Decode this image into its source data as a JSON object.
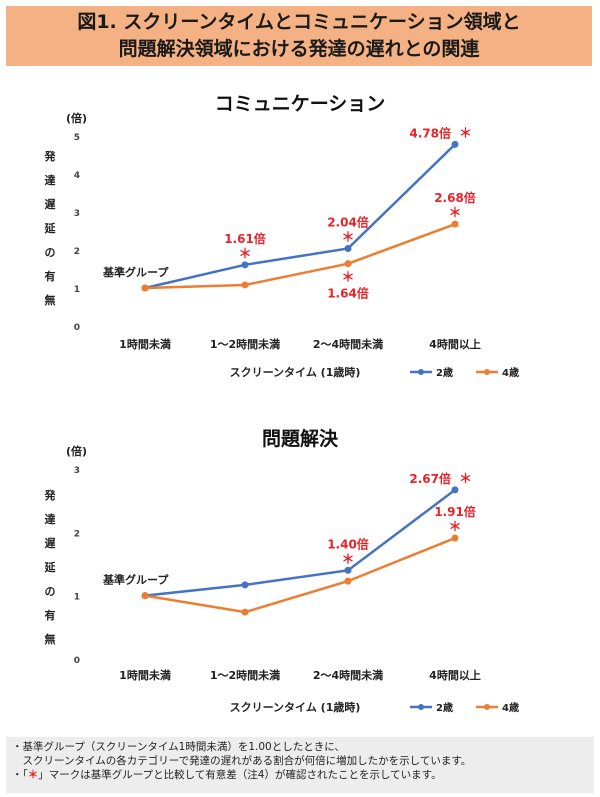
{
  "header": {
    "title_line1": "図1. スクリーンタイムとコミュニケーション領域と",
    "title_line2": "問題解決領域における発達の遅れとの関連"
  },
  "colors": {
    "series_2yo": "#4472C4",
    "series_4yo": "#ED7D31",
    "annotation": "#E8232A",
    "banner": "#F4B183"
  },
  "chart_data": [
    {
      "type": "line",
      "title": "コミュニケーション",
      "ylabel": "発達遅延の有無",
      "yunit": "(倍)",
      "xlabel": "スクリーンタイム (1歳時)",
      "categories": [
        "1時間未満",
        "1～2時間未満",
        "2～4時間未満",
        "4時間以上"
      ],
      "ylim": [
        0,
        5
      ],
      "yticks": [
        "0",
        "1",
        "2",
        "3",
        "4",
        "5"
      ],
      "grid": false,
      "legend": "bottom-right",
      "baseline_label": "基準グループ",
      "series": [
        {
          "name": "2歳",
          "values": [
            1.0,
            1.61,
            2.04,
            4.78
          ]
        },
        {
          "name": "4歳",
          "values": [
            1.0,
            1.08,
            1.64,
            2.68
          ]
        }
      ],
      "annotations": [
        {
          "series": 0,
          "index": 1,
          "label": "1.61倍",
          "star": "＊",
          "place": "above"
        },
        {
          "series": 0,
          "index": 2,
          "label": "2.04倍",
          "star": "＊",
          "place": "above"
        },
        {
          "series": 0,
          "index": 3,
          "label": "4.78倍",
          "star": "＊",
          "place": "left"
        },
        {
          "series": 1,
          "index": 2,
          "label": "1.64倍",
          "star": "＊",
          "place": "below"
        },
        {
          "series": 1,
          "index": 3,
          "label": "2.68倍",
          "star": "＊",
          "place": "above"
        }
      ]
    },
    {
      "type": "line",
      "title": "問題解決",
      "ylabel": "発達遅延の有無",
      "yunit": "(倍)",
      "xlabel": "スクリーンタイム (1歳時)",
      "categories": [
        "1時間未満",
        "1～2時間未満",
        "2～4時間未満",
        "4時間以上"
      ],
      "ylim": [
        0,
        3
      ],
      "yticks": [
        "0",
        "1",
        "2",
        "3"
      ],
      "grid": false,
      "legend": "bottom-right",
      "baseline_label": "基準グループ",
      "series": [
        {
          "name": "2歳",
          "values": [
            1.0,
            1.17,
            1.4,
            2.67
          ]
        },
        {
          "name": "4歳",
          "values": [
            1.0,
            0.74,
            1.23,
            1.91
          ]
        }
      ],
      "annotations": [
        {
          "series": 0,
          "index": 2,
          "label": "1.40倍",
          "star": "＊",
          "place": "above"
        },
        {
          "series": 0,
          "index": 3,
          "label": "2.67倍",
          "star": "＊",
          "place": "left"
        },
        {
          "series": 1,
          "index": 3,
          "label": "1.91倍",
          "star": "＊",
          "place": "above"
        }
      ]
    }
  ],
  "notes": {
    "line1": "・基準グループ（スクリーンタイム1時間未満）を1.00としたときに、",
    "line2": "　スクリーンタイムの各カテゴリーで発達の遅れがある割合が何倍に増加したかを示しています。",
    "line3_pre": "・「",
    "line3_star": "＊",
    "line3_post": "」マークは基準グループと比較して有意差（注4）が確認されたことを示しています。"
  }
}
